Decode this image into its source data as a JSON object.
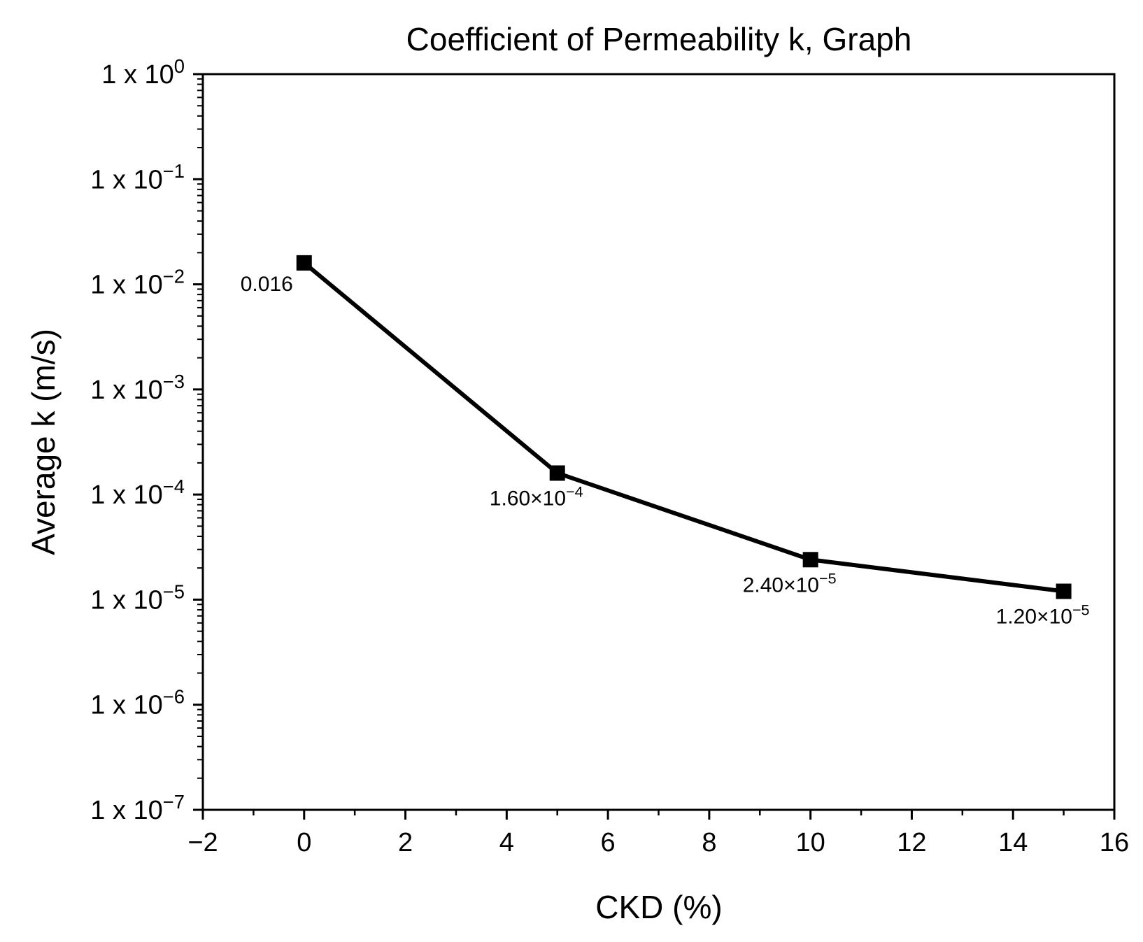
{
  "chart_data": {
    "type": "line",
    "title": "Coefficient of Permeability k, Graph",
    "xlabel": "CKD (%)",
    "ylabel": "Average k (m/s)",
    "xlim": [
      -2,
      16
    ],
    "ylim": [
      1e-07,
      1
    ],
    "yscale": "log",
    "x_major_ticks": [
      -2,
      0,
      2,
      4,
      6,
      8,
      10,
      12,
      14,
      16
    ],
    "x_tick_labels": [
      "−2",
      "0",
      "2",
      "4",
      "6",
      "8",
      "10",
      "12",
      "14",
      "16"
    ],
    "y_major_ticks": [
      {
        "value": 1,
        "base": "1 x 10",
        "exp": "0"
      },
      {
        "value": 0.1,
        "base": "1 x 10",
        "exp": "−1"
      },
      {
        "value": 0.01,
        "base": "1 x 10",
        "exp": "−2"
      },
      {
        "value": 0.001,
        "base": "1 x 10",
        "exp": "−3"
      },
      {
        "value": 0.0001,
        "base": "1 x 10",
        "exp": "−4"
      },
      {
        "value": 1e-05,
        "base": "1 x 10",
        "exp": "−5"
      },
      {
        "value": 1e-06,
        "base": "1 x 10",
        "exp": "−6"
      },
      {
        "value": 1e-07,
        "base": "1 x 10",
        "exp": "−7"
      }
    ],
    "series": [
      {
        "name": "Average k",
        "color": "#000000",
        "marker": "square",
        "x": [
          0,
          5,
          10,
          15
        ],
        "y": [
          0.016,
          0.00016,
          2.4e-05,
          1.2e-05
        ],
        "labels": [
          {
            "base": "0.016",
            "exp": "",
            "anchor": "left-below"
          },
          {
            "base": "1.60×10",
            "exp": "−4",
            "anchor": "below"
          },
          {
            "base": "2.40×10",
            "exp": "−5",
            "anchor": "below"
          },
          {
            "base": "1.20×10",
            "exp": "−5",
            "anchor": "below"
          }
        ]
      }
    ]
  }
}
